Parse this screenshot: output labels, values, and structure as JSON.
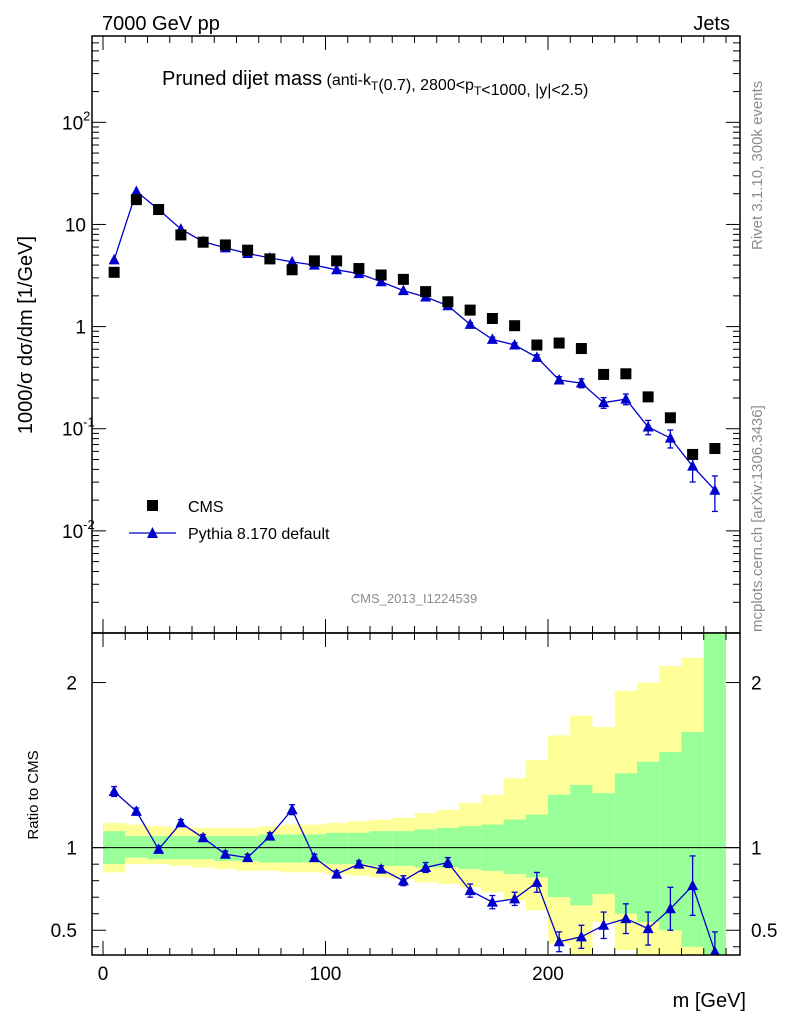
{
  "header": {
    "left": "7000 GeV pp",
    "right": "Jets"
  },
  "side": {
    "rivet": "Rivet 3.1.10,  300k events",
    "mcplots": "mcplots.cern.ch [arXiv:1306.3436]"
  },
  "chart_data": [
    {
      "type": "scatter",
      "title_main": "Pruned dijet mass",
      "title_sub": "(anti-k_T(0.7), 2800<p_T<1000, |y|<2.5)",
      "watermark": "CMS_2013_I1224539",
      "ylabel": "1000/σ dσ/dm [1/GeV]",
      "yscale": "log",
      "ylim": [
        0.001,
        700
      ],
      "xlim": [
        -10,
        285
      ],
      "y_ticks": [
        {
          "v": 0.01,
          "b": "10",
          "e": "-2"
        },
        {
          "v": 0.1,
          "b": "10",
          "e": "-1"
        },
        {
          "v": 1,
          "b": "1",
          "e": ""
        },
        {
          "v": 10,
          "b": "10",
          "e": ""
        },
        {
          "v": 100,
          "b": "10",
          "e": "2"
        }
      ],
      "legend": {
        "position": "bottom-left",
        "entries": [
          "CMS",
          "Pythia 8.170 default"
        ]
      },
      "x": [
        5,
        15,
        25,
        35,
        45,
        55,
        65,
        75,
        85,
        95,
        105,
        115,
        125,
        135,
        145,
        155,
        165,
        175,
        185,
        195,
        205,
        215,
        225,
        235,
        245,
        255,
        265,
        275
      ],
      "series": [
        {
          "name": "CMS",
          "marker": "square",
          "color": "#000000",
          "values": [
            3.4,
            17.5,
            14.0,
            7.9,
            6.7,
            6.3,
            5.6,
            4.6,
            3.6,
            4.4,
            4.4,
            3.7,
            3.2,
            2.9,
            2.2,
            1.75,
            1.45,
            1.2,
            1.02,
            0.66,
            0.69,
            0.61,
            0.34,
            0.345,
            0.205,
            0.128,
            0.056,
            0.064
          ]
        },
        {
          "name": "Pythia 8.170 default",
          "marker": "triangle",
          "color": "#0000cc",
          "values": [
            4.5,
            21.0,
            14.0,
            9.0,
            6.8,
            5.9,
            5.2,
            4.7,
            4.3,
            4.0,
            3.6,
            3.3,
            2.75,
            2.25,
            1.95,
            1.6,
            1.05,
            0.75,
            0.66,
            0.5,
            0.3,
            0.28,
            0.18,
            0.195,
            0.104,
            0.081,
            0.043,
            0.025
          ],
          "err_rel": [
            0.02,
            0.02,
            0.02,
            0.02,
            0.02,
            0.02,
            0.02,
            0.02,
            0.02,
            0.02,
            0.02,
            0.02,
            0.02,
            0.02,
            0.02,
            0.02,
            0.04,
            0.05,
            0.05,
            0.06,
            0.08,
            0.1,
            0.12,
            0.12,
            0.16,
            0.2,
            0.3,
            0.38
          ]
        }
      ]
    },
    {
      "type": "scatter",
      "ylabel": "Ratio to CMS",
      "xlabel": "m [GeV]",
      "ylim": [
        0.35,
        2.3
      ],
      "xlim": [
        -10,
        285
      ],
      "y_ticks": [
        0.5,
        1,
        2
      ],
      "y_tick_labels": [
        "0.5",
        "1",
        "2"
      ],
      "x_ticks": [
        0,
        100,
        200
      ],
      "x_tick_labels": [
        "0",
        "100",
        "200"
      ],
      "band_edges": [
        0,
        10,
        20,
        30,
        40,
        50,
        60,
        70,
        80,
        90,
        100,
        110,
        120,
        130,
        140,
        150,
        160,
        170,
        180,
        190,
        200,
        210,
        220,
        230,
        240,
        250,
        260,
        270,
        280
      ],
      "band_inner": [
        [
          0.9,
          1.1
        ],
        [
          0.94,
          1.07
        ],
        [
          0.93,
          1.07
        ],
        [
          0.93,
          1.07
        ],
        [
          0.93,
          1.07
        ],
        [
          0.92,
          1.07
        ],
        [
          0.92,
          1.07
        ],
        [
          0.91,
          1.08
        ],
        [
          0.91,
          1.08
        ],
        [
          0.91,
          1.08
        ],
        [
          0.9,
          1.09
        ],
        [
          0.9,
          1.09
        ],
        [
          0.89,
          1.1
        ],
        [
          0.89,
          1.1
        ],
        [
          0.88,
          1.11
        ],
        [
          0.88,
          1.12
        ],
        [
          0.87,
          1.13
        ],
        [
          0.86,
          1.14
        ],
        [
          0.84,
          1.17
        ],
        [
          0.82,
          1.2
        ],
        [
          0.7,
          1.32
        ],
        [
          0.65,
          1.38
        ],
        [
          0.72,
          1.33
        ],
        [
          0.6,
          1.45
        ],
        [
          0.55,
          1.52
        ],
        [
          0.5,
          1.58
        ],
        [
          0.4,
          1.7
        ],
        [
          0.35,
          2.3
        ],
        [
          0.35,
          1.9
        ]
      ],
      "band_outer": [
        [
          0.85,
          1.15
        ],
        [
          0.9,
          1.14
        ],
        [
          0.9,
          1.13
        ],
        [
          0.89,
          1.12
        ],
        [
          0.88,
          1.12
        ],
        [
          0.87,
          1.12
        ],
        [
          0.86,
          1.12
        ],
        [
          0.86,
          1.13
        ],
        [
          0.85,
          1.14
        ],
        [
          0.85,
          1.14
        ],
        [
          0.84,
          1.15
        ],
        [
          0.83,
          1.16
        ],
        [
          0.82,
          1.17
        ],
        [
          0.81,
          1.18
        ],
        [
          0.79,
          1.21
        ],
        [
          0.78,
          1.23
        ],
        [
          0.76,
          1.27
        ],
        [
          0.73,
          1.32
        ],
        [
          0.68,
          1.42
        ],
        [
          0.62,
          1.53
        ],
        [
          0.42,
          1.68
        ],
        [
          0.35,
          1.8
        ],
        [
          0.55,
          1.73
        ],
        [
          0.38,
          1.95
        ],
        [
          0.35,
          2.0
        ],
        [
          0.35,
          2.1
        ],
        [
          0.35,
          2.15
        ],
        [
          0.35,
          2.3
        ],
        [
          0.35,
          2.25
        ]
      ],
      "x": [
        5,
        15,
        25,
        35,
        45,
        55,
        65,
        75,
        85,
        95,
        105,
        115,
        125,
        135,
        145,
        155,
        165,
        175,
        185,
        195,
        205,
        215,
        225,
        235,
        245,
        255,
        265,
        275
      ],
      "series": [
        {
          "name": "Pythia 8.170 default",
          "color": "#0000cc",
          "values": [
            1.34,
            1.22,
            0.99,
            1.15,
            1.06,
            0.96,
            0.94,
            1.07,
            1.23,
            0.94,
            0.84,
            0.9,
            0.87,
            0.8,
            0.88,
            0.91,
            0.74,
            0.67,
            0.69,
            0.79,
            0.43,
            0.46,
            0.53,
            0.57,
            0.51,
            0.63,
            0.77,
            0.37
          ],
          "err": [
            0.03,
            0.02,
            0.02,
            0.02,
            0.02,
            0.02,
            0.02,
            0.02,
            0.03,
            0.02,
            0.02,
            0.02,
            0.02,
            0.03,
            0.03,
            0.03,
            0.04,
            0.04,
            0.04,
            0.06,
            0.06,
            0.07,
            0.08,
            0.09,
            0.1,
            0.13,
            0.18,
            0.12
          ]
        }
      ]
    }
  ]
}
